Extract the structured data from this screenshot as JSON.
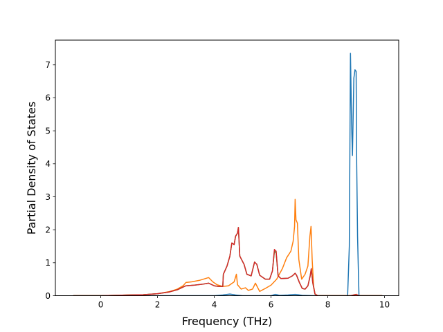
{
  "chart_data": {
    "type": "line",
    "title": "",
    "xlabel": "Frequency (THz)",
    "ylabel": "Partial Density of States",
    "xlim": [
      -1.6,
      10.5
    ],
    "ylim": [
      0,
      7.75
    ],
    "xticks": [
      0,
      2,
      4,
      6,
      8,
      10
    ],
    "yticks": [
      0,
      1,
      2,
      3,
      4,
      5,
      6,
      7
    ],
    "grid": false,
    "legend": "none",
    "series": [
      {
        "color": "#1f77b4",
        "points": [
          [
            -0.95,
            0
          ],
          [
            4.0,
            0
          ],
          [
            4.3,
            0.02
          ],
          [
            4.55,
            0.05
          ],
          [
            4.75,
            0.02
          ],
          [
            5.0,
            0
          ],
          [
            6.0,
            0
          ],
          [
            6.15,
            0.04
          ],
          [
            6.3,
            0.01
          ],
          [
            6.6,
            0.02
          ],
          [
            6.85,
            0.04
          ],
          [
            7.1,
            0.01
          ],
          [
            7.5,
            0
          ],
          [
            8.7,
            0
          ],
          [
            8.76,
            1.5
          ],
          [
            8.8,
            7.35
          ],
          [
            8.84,
            5.2
          ],
          [
            8.87,
            4.25
          ],
          [
            8.92,
            6.6
          ],
          [
            8.96,
            6.85
          ],
          [
            9.0,
            6.8
          ],
          [
            9.02,
            4.0
          ],
          [
            9.05,
            1.8
          ],
          [
            9.1,
            0
          ],
          [
            9.9,
            0
          ]
        ]
      },
      {
        "color": "#ff7f0e",
        "points": [
          [
            -0.95,
            0
          ],
          [
            0,
            0
          ],
          [
            0.5,
            0.01
          ],
          [
            1.0,
            0.02
          ],
          [
            1.5,
            0.03
          ],
          [
            2.0,
            0.06
          ],
          [
            2.4,
            0.12
          ],
          [
            2.7,
            0.2
          ],
          [
            2.9,
            0.3
          ],
          [
            3.0,
            0.4
          ],
          [
            3.2,
            0.42
          ],
          [
            3.5,
            0.47
          ],
          [
            3.8,
            0.55
          ],
          [
            3.95,
            0.42
          ],
          [
            4.1,
            0.33
          ],
          [
            4.3,
            0.28
          ],
          [
            4.5,
            0.3
          ],
          [
            4.7,
            0.42
          ],
          [
            4.78,
            0.65
          ],
          [
            4.82,
            0.33
          ],
          [
            4.95,
            0.2
          ],
          [
            5.1,
            0.24
          ],
          [
            5.2,
            0.16
          ],
          [
            5.35,
            0.2
          ],
          [
            5.45,
            0.38
          ],
          [
            5.6,
            0.13
          ],
          [
            5.8,
            0.22
          ],
          [
            6.0,
            0.32
          ],
          [
            6.2,
            0.5
          ],
          [
            6.4,
            0.82
          ],
          [
            6.55,
            1.15
          ],
          [
            6.7,
            1.35
          ],
          [
            6.78,
            1.65
          ],
          [
            6.83,
            2.1
          ],
          [
            6.85,
            2.92
          ],
          [
            6.88,
            2.3
          ],
          [
            6.93,
            2.2
          ],
          [
            6.98,
            1.1
          ],
          [
            7.08,
            0.5
          ],
          [
            7.2,
            0.65
          ],
          [
            7.3,
            0.9
          ],
          [
            7.37,
            1.8
          ],
          [
            7.41,
            2.1
          ],
          [
            7.45,
            1.1
          ],
          [
            7.5,
            0.3
          ],
          [
            7.55,
            0.05
          ],
          [
            7.65,
            0
          ],
          [
            9.9,
            0
          ]
        ]
      },
      {
        "color": "#2ca02c",
        "points": [
          [
            -0.95,
            0
          ],
          [
            0,
            0
          ],
          [
            0.5,
            0.01
          ],
          [
            1.0,
            0.02
          ],
          [
            1.5,
            0.03
          ],
          [
            2.0,
            0.06
          ],
          [
            2.4,
            0.11
          ],
          [
            2.7,
            0.18
          ],
          [
            2.9,
            0.26
          ],
          [
            3.0,
            0.3
          ],
          [
            3.3,
            0.32
          ],
          [
            3.6,
            0.35
          ],
          [
            3.8,
            0.38
          ],
          [
            4.0,
            0.3
          ],
          [
            4.15,
            0.28
          ],
          [
            4.3,
            0.28
          ],
          [
            4.32,
            0.65
          ],
          [
            4.45,
            0.9
          ],
          [
            4.55,
            1.2
          ],
          [
            4.62,
            1.6
          ],
          [
            4.7,
            1.55
          ],
          [
            4.75,
            1.8
          ],
          [
            4.82,
            1.9
          ],
          [
            4.85,
            2.07
          ],
          [
            4.9,
            1.2
          ],
          [
            5.05,
            0.95
          ],
          [
            5.15,
            0.65
          ],
          [
            5.3,
            0.6
          ],
          [
            5.42,
            1.02
          ],
          [
            5.5,
            0.95
          ],
          [
            5.6,
            0.62
          ],
          [
            5.8,
            0.5
          ],
          [
            5.95,
            0.5
          ],
          [
            6.05,
            0.75
          ],
          [
            6.12,
            1.35
          ],
          [
            6.18,
            1.3
          ],
          [
            6.25,
            0.6
          ],
          [
            6.35,
            0.52
          ],
          [
            6.6,
            0.53
          ],
          [
            6.75,
            0.6
          ],
          [
            6.85,
            0.68
          ],
          [
            6.9,
            0.62
          ],
          [
            7.0,
            0.4
          ],
          [
            7.1,
            0.22
          ],
          [
            7.2,
            0.2
          ],
          [
            7.3,
            0.3
          ],
          [
            7.38,
            0.6
          ],
          [
            7.42,
            0.82
          ],
          [
            7.47,
            0.4
          ],
          [
            7.55,
            0.05
          ],
          [
            7.65,
            0
          ],
          [
            8.8,
            0
          ],
          [
            9.0,
            0.04
          ],
          [
            9.1,
            0
          ],
          [
            9.9,
            0
          ]
        ]
      },
      {
        "color": "#d62728",
        "points": [
          [
            -0.95,
            0
          ],
          [
            0,
            0
          ],
          [
            0.5,
            0.01
          ],
          [
            1.0,
            0.02
          ],
          [
            1.5,
            0.03
          ],
          [
            2.0,
            0.06
          ],
          [
            2.4,
            0.11
          ],
          [
            2.7,
            0.18
          ],
          [
            2.9,
            0.26
          ],
          [
            3.0,
            0.3
          ],
          [
            3.3,
            0.32
          ],
          [
            3.6,
            0.35
          ],
          [
            3.8,
            0.38
          ],
          [
            4.0,
            0.3
          ],
          [
            4.15,
            0.28
          ],
          [
            4.3,
            0.28
          ],
          [
            4.32,
            0.65
          ],
          [
            4.45,
            0.9
          ],
          [
            4.55,
            1.2
          ],
          [
            4.62,
            1.6
          ],
          [
            4.7,
            1.55
          ],
          [
            4.75,
            1.8
          ],
          [
            4.82,
            1.9
          ],
          [
            4.85,
            2.07
          ],
          [
            4.9,
            1.2
          ],
          [
            5.05,
            0.95
          ],
          [
            5.15,
            0.65
          ],
          [
            5.3,
            0.6
          ],
          [
            5.42,
            1.02
          ],
          [
            5.5,
            0.95
          ],
          [
            5.6,
            0.62
          ],
          [
            5.8,
            0.5
          ],
          [
            5.95,
            0.5
          ],
          [
            6.05,
            0.75
          ],
          [
            6.12,
            1.4
          ],
          [
            6.18,
            1.35
          ],
          [
            6.25,
            0.6
          ],
          [
            6.35,
            0.52
          ],
          [
            6.6,
            0.53
          ],
          [
            6.75,
            0.6
          ],
          [
            6.85,
            0.68
          ],
          [
            6.9,
            0.62
          ],
          [
            7.0,
            0.4
          ],
          [
            7.1,
            0.22
          ],
          [
            7.2,
            0.2
          ],
          [
            7.3,
            0.3
          ],
          [
            7.38,
            0.6
          ],
          [
            7.42,
            0.82
          ],
          [
            7.47,
            0.4
          ],
          [
            7.55,
            0.05
          ],
          [
            7.65,
            0
          ],
          [
            8.8,
            0
          ],
          [
            9.0,
            0.04
          ],
          [
            9.1,
            0
          ],
          [
            9.9,
            0
          ]
        ]
      }
    ]
  }
}
